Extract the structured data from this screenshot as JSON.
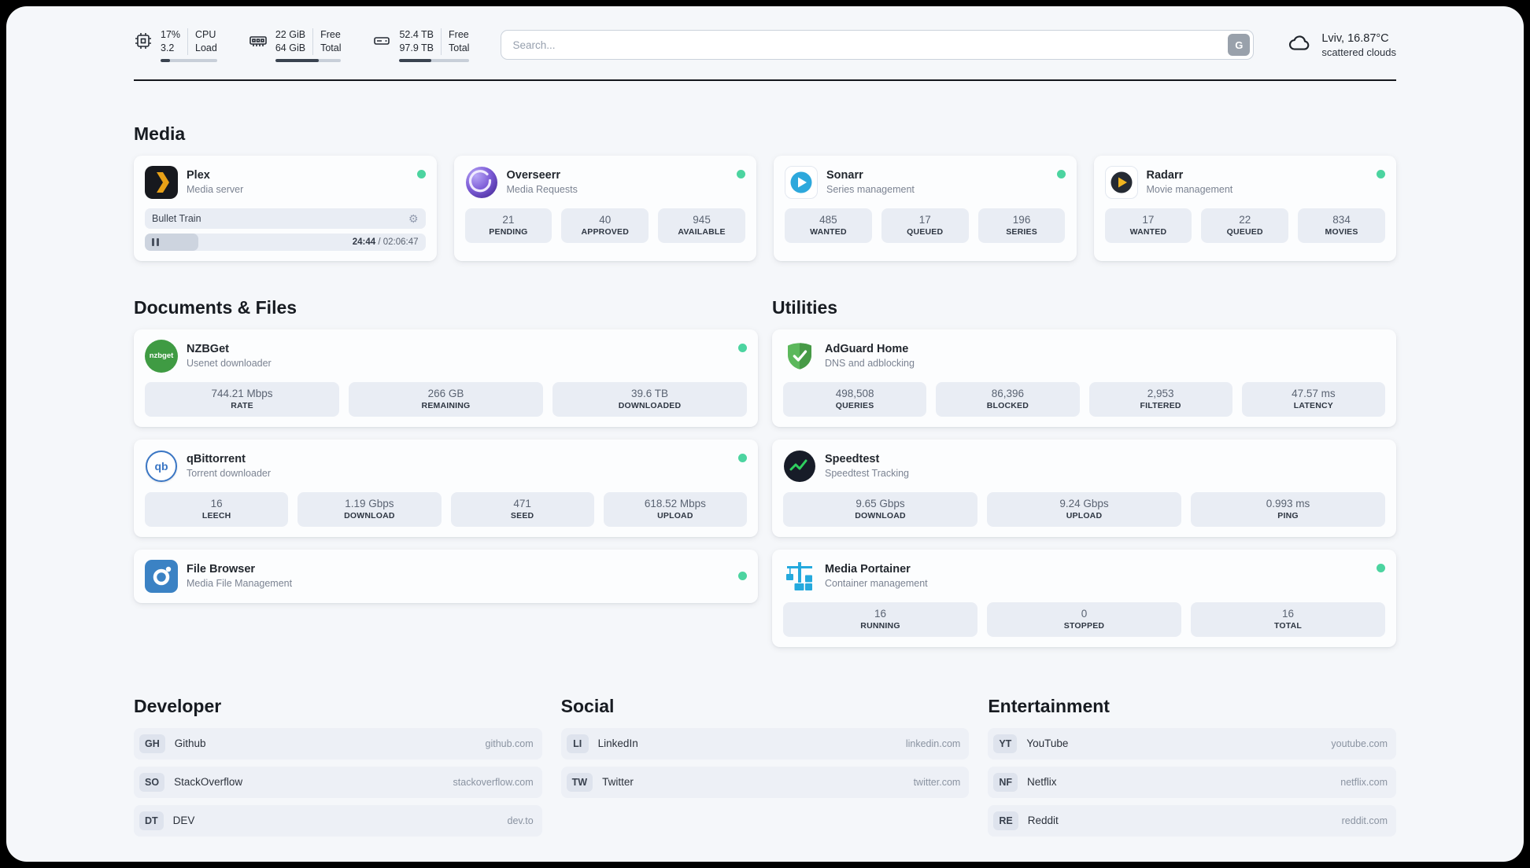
{
  "header": {
    "cpu": {
      "usage": "17%",
      "load": "3.2",
      "label_top": "CPU",
      "label_bottom": "Load",
      "progress_pct": 17
    },
    "memory": {
      "free": "22 GiB",
      "total": "64 GiB",
      "label_top": "Free",
      "label_bottom": "Total",
      "progress_pct": 66
    },
    "storage": {
      "free": "52.4 TB",
      "total": "97.9 TB",
      "label_top": "Free",
      "label_bottom": "Total",
      "progress_pct": 46
    },
    "search": {
      "placeholder": "Search...",
      "engine_button": "G"
    },
    "weather": {
      "location": "Lviv, 16.87°C",
      "condition": "scattered clouds"
    }
  },
  "icons": {
    "gear": "⚙",
    "nzbget_label": "nzbget",
    "qbittorrent_label": "qb"
  },
  "colors": {
    "status_online": "#4cd4a0",
    "plex_amber": "#e8a117",
    "stat_box_bg": "#e9edf4"
  },
  "sections": {
    "media": {
      "title": "Media",
      "plex": {
        "name": "Plex",
        "subtitle": "Media server",
        "status": "online",
        "now_playing": {
          "title": "Bullet Train",
          "elapsed": "24:44",
          "separator": " / ",
          "duration": "02:06:47",
          "progress_pct": 19
        }
      },
      "overseerr": {
        "name": "Overseerr",
        "subtitle": "Media Requests",
        "status": "online",
        "stats": [
          {
            "value": "21",
            "label": "PENDING"
          },
          {
            "value": "40",
            "label": "APPROVED"
          },
          {
            "value": "945",
            "label": "AVAILABLE"
          }
        ]
      },
      "sonarr": {
        "name": "Sonarr",
        "subtitle": "Series management",
        "status": "online",
        "stats": [
          {
            "value": "485",
            "label": "WANTED"
          },
          {
            "value": "17",
            "label": "QUEUED"
          },
          {
            "value": "196",
            "label": "SERIES"
          }
        ]
      },
      "radarr": {
        "name": "Radarr",
        "subtitle": "Movie management",
        "status": "online",
        "stats": [
          {
            "value": "17",
            "label": "WANTED"
          },
          {
            "value": "22",
            "label": "QUEUED"
          },
          {
            "value": "834",
            "label": "MOVIES"
          }
        ]
      }
    },
    "documents": {
      "title": "Documents & Files",
      "nzbget": {
        "name": "NZBGet",
        "subtitle": "Usenet downloader",
        "status": "online",
        "stats": [
          {
            "value": "744.21 Mbps",
            "label": "RATE"
          },
          {
            "value": "266 GB",
            "label": "REMAINING"
          },
          {
            "value": "39.6 TB",
            "label": "DOWNLOADED"
          }
        ]
      },
      "qbittorrent": {
        "name": "qBittorrent",
        "subtitle": "Torrent downloader",
        "status": "online",
        "stats": [
          {
            "value": "16",
            "label": "LEECH"
          },
          {
            "value": "1.19 Gbps",
            "label": "DOWNLOAD"
          },
          {
            "value": "471",
            "label": "SEED"
          },
          {
            "value": "618.52 Mbps",
            "label": "UPLOAD"
          }
        ]
      },
      "filebrowser": {
        "name": "File Browser",
        "subtitle": "Media File Management",
        "status": "online"
      }
    },
    "utilities": {
      "title": "Utilities",
      "adguard": {
        "name": "AdGuard Home",
        "subtitle": "DNS and adblocking",
        "stats": [
          {
            "value": "498,508",
            "label": "QUERIES"
          },
          {
            "value": "86,396",
            "label": "BLOCKED"
          },
          {
            "value": "2,953",
            "label": "FILTERED"
          },
          {
            "value": "47.57 ms",
            "label": "LATENCY"
          }
        ]
      },
      "speedtest": {
        "name": "Speedtest",
        "subtitle": "Speedtest Tracking",
        "stats": [
          {
            "value": "9.65 Gbps",
            "label": "DOWNLOAD"
          },
          {
            "value": "9.24 Gbps",
            "label": "UPLOAD"
          },
          {
            "value": "0.993 ms",
            "label": "PING"
          }
        ]
      },
      "portainer": {
        "name": "Media Portainer",
        "subtitle": "Container management",
        "status": "online",
        "stats": [
          {
            "value": "16",
            "label": "RUNNING"
          },
          {
            "value": "0",
            "label": "STOPPED"
          },
          {
            "value": "16",
            "label": "TOTAL"
          }
        ]
      }
    },
    "bookmarks": {
      "developer": {
        "title": "Developer",
        "links": [
          {
            "abbr": "GH",
            "name": "Github",
            "url": "github.com"
          },
          {
            "abbr": "SO",
            "name": "StackOverflow",
            "url": "stackoverflow.com"
          },
          {
            "abbr": "DT",
            "name": "DEV",
            "url": "dev.to"
          }
        ]
      },
      "social": {
        "title": "Social",
        "links": [
          {
            "abbr": "LI",
            "name": "LinkedIn",
            "url": "linkedin.com"
          },
          {
            "abbr": "TW",
            "name": "Twitter",
            "url": "twitter.com"
          }
        ]
      },
      "entertainment": {
        "title": "Entertainment",
        "links": [
          {
            "abbr": "YT",
            "name": "YouTube",
            "url": "youtube.com"
          },
          {
            "abbr": "NF",
            "name": "Netflix",
            "url": "netflix.com"
          },
          {
            "abbr": "RE",
            "name": "Reddit",
            "url": "reddit.com"
          }
        ]
      }
    }
  }
}
